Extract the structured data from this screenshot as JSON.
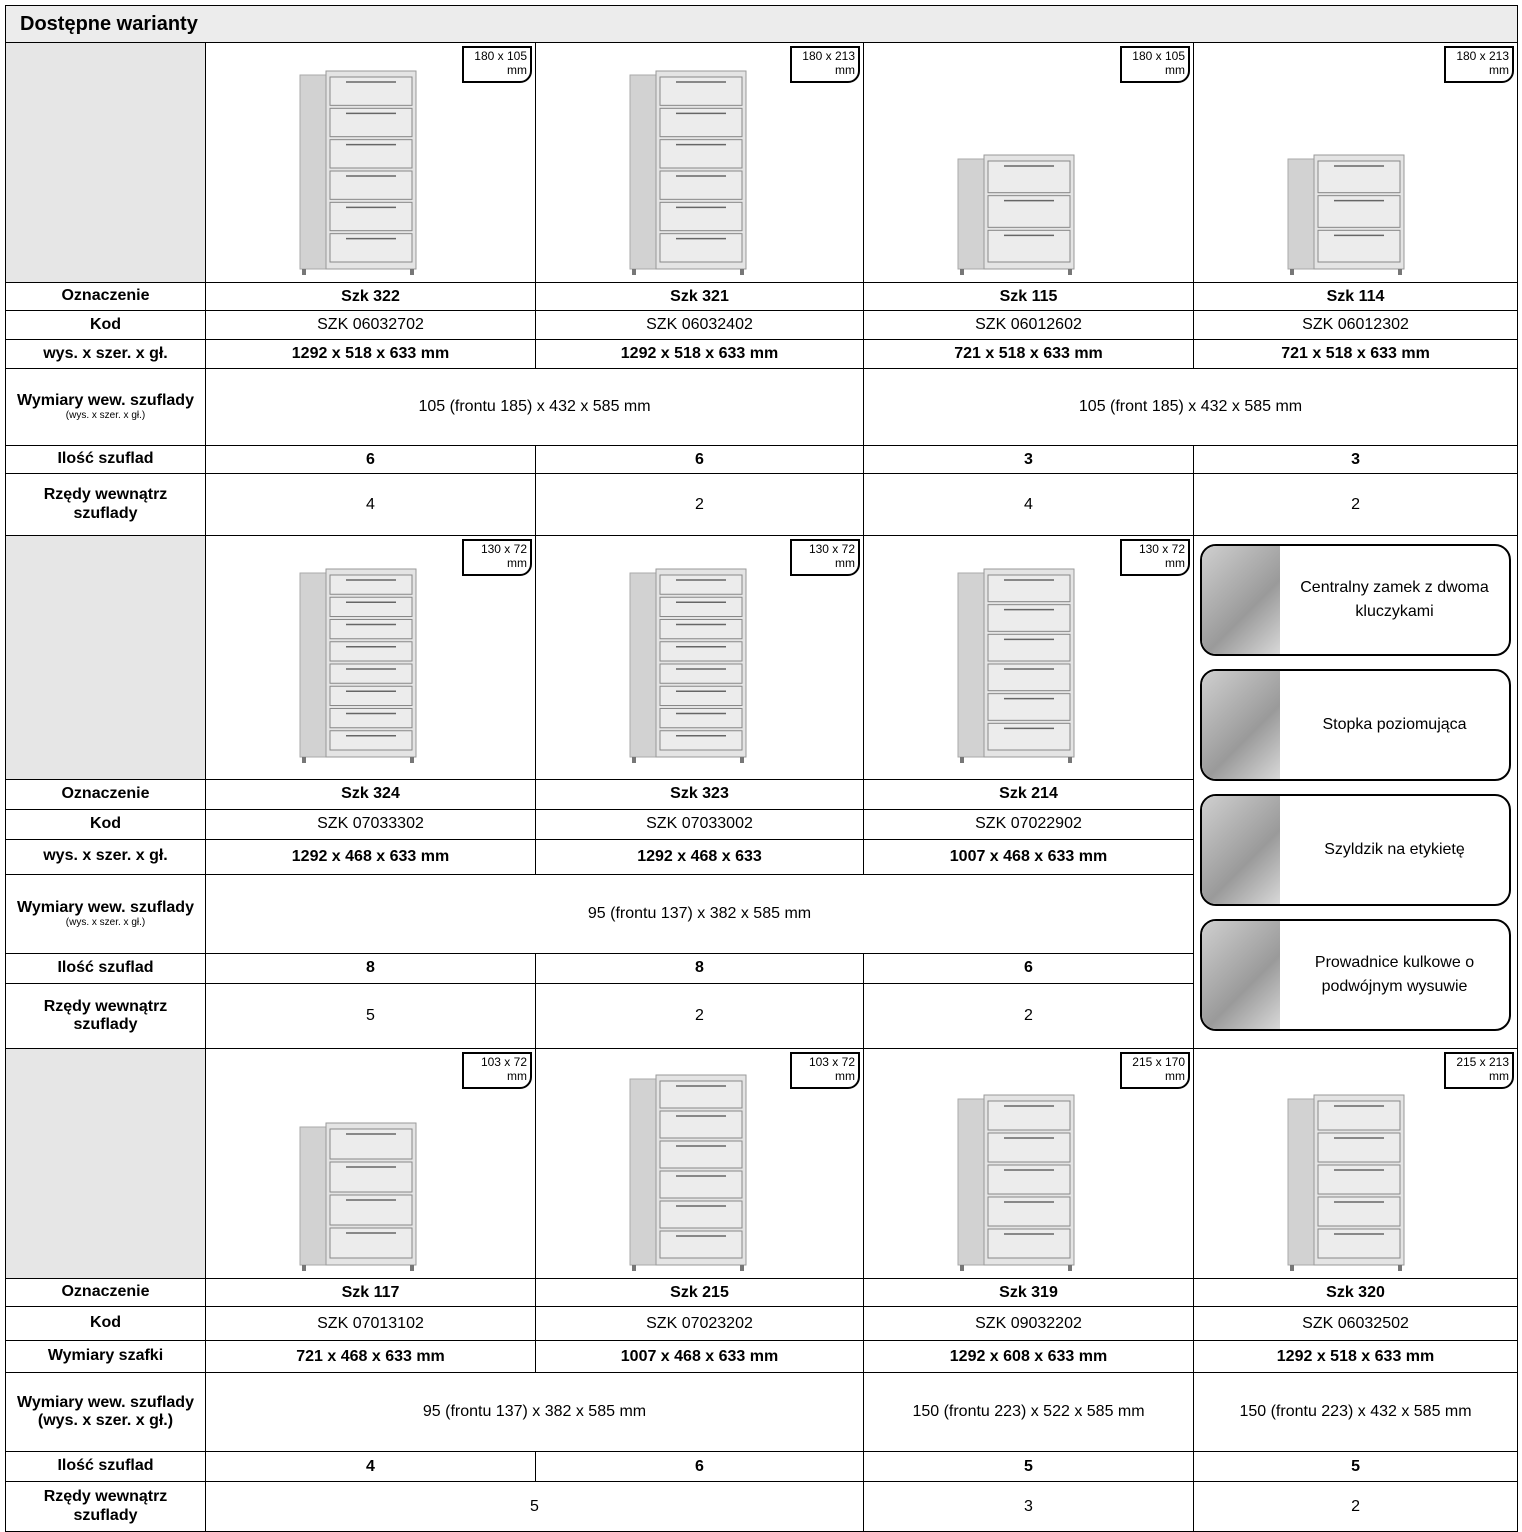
{
  "header": {
    "title": "Dostępne warianty"
  },
  "sections": [
    {
      "products": [
        {
          "size_label": "180 x 105 mm"
        },
        {
          "size_label": "180 x 213 mm"
        },
        {
          "size_label": "180 x 105 mm"
        },
        {
          "size_label": "180 x 213 mm"
        }
      ],
      "rows": [
        {
          "label": "Oznaczenie",
          "cells": [
            "Szk 322",
            "Szk 321",
            "Szk 115",
            "Szk 114"
          ]
        },
        {
          "label": "Kod",
          "cells": [
            "SZK 06032702",
            "SZK 06032402",
            "SZK 06012602",
            "SZK 06012302"
          ]
        },
        {
          "label": "wys. x szer. x gł.",
          "cells": [
            "1292 x 518 x 633 mm",
            "1292 x 518 x 633 mm",
            "721 x 518 x 633 mm",
            "721 x 518 x 633 mm"
          ]
        },
        {
          "label": "Wymiary wew. szuflady",
          "note": "(wys. x szer. x gł.)",
          "cells": [
            "105 (frontu 185) x 432 x 585 mm",
            "105 (front 185) x 432 x 585 mm"
          ]
        },
        {
          "label": "Ilość szuflad",
          "cells": [
            "6",
            "6",
            "3",
            "3"
          ]
        },
        {
          "label": "Rzędy wewnątrz szuflady",
          "cells": [
            "4",
            "2",
            "4",
            "2"
          ]
        }
      ]
    },
    {
      "products": [
        {
          "size_label": "130 x 72 mm"
        },
        {
          "size_label": "130 x 72 mm"
        },
        {
          "size_label": "130 x 72 mm"
        }
      ],
      "features": [
        "Centralny zamek z dwoma kluczykami",
        "Stopka poziomująca",
        "Szyldzik na etykietę",
        "Prowadnice kulkowe o podwójnym wysuwie"
      ],
      "rows": [
        {
          "label": "Oznaczenie",
          "cells": [
            "Szk 324",
            "Szk 323",
            "Szk 214"
          ]
        },
        {
          "label": "Kod",
          "cells": [
            "SZK 07033302",
            "SZK 07033002",
            "SZK 07022902"
          ]
        },
        {
          "label": "wys. x szer. x gł.",
          "cells": [
            "1292 x 468 x 633 mm",
            "1292 x 468 x 633",
            "1007 x 468 x 633 mm"
          ]
        },
        {
          "label": "Wymiary wew. szuflady",
          "note": "(wys. x szer. x gł.)",
          "cells": [
            "95 (frontu 137) x 382 x 585 mm"
          ]
        },
        {
          "label": "Ilość szuflad",
          "cells": [
            "8",
            "8",
            "6"
          ]
        },
        {
          "label": "Rzędy wewnątrz szuflady",
          "cells": [
            "5",
            "2",
            "2"
          ]
        }
      ]
    },
    {
      "products": [
        {
          "size_label": "103 x 72 mm"
        },
        {
          "size_label": "103 x 72 mm"
        },
        {
          "size_label": "215 x 170 mm"
        },
        {
          "size_label": "215 x 213 mm"
        }
      ],
      "rows": [
        {
          "label": "Oznaczenie",
          "cells": [
            "Szk 117",
            "Szk 215",
            "Szk 319",
            "Szk 320"
          ]
        },
        {
          "label": "Kod",
          "cells": [
            "SZK 07013102",
            "SZK 07023202",
            "SZK 09032202",
            "SZK 06032502"
          ]
        },
        {
          "label": "Wymiary szafki",
          "cells": [
            "721 x 468 x 633 mm",
            "1007 x 468 x 633 mm",
            "1292 x 608 x 633 mm",
            "1292 x 518 x 633 mm"
          ]
        },
        {
          "label": "Wymiary wew. szuflady (wys. x szer. x gł.)",
          "cells": [
            "95 (frontu 137) x 382 x 585 mm",
            "150 (frontu 223) x 522 x 585 mm",
            "150 (frontu 223) x 432 x 585 mm"
          ]
        },
        {
          "label": "Ilość szuflad",
          "cells": [
            "4",
            "6",
            "5",
            "5"
          ]
        },
        {
          "label": "Rzędy wewnątrz szuflady",
          "cells": [
            "5",
            "3",
            "2"
          ]
        }
      ]
    }
  ]
}
